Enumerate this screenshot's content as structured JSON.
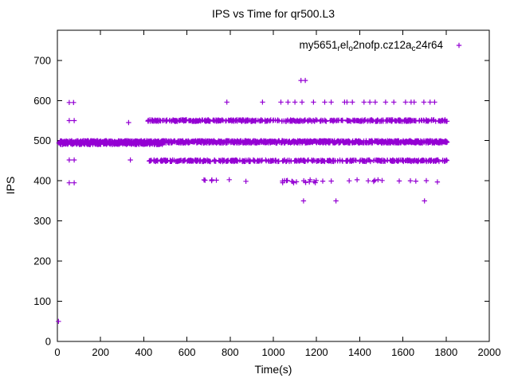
{
  "chart_data": {
    "type": "scatter",
    "title": "IPS vs Time for qr500.L3",
    "xlabel": "Time(s)",
    "ylabel": "IPS",
    "xlim": [
      0,
      2000
    ],
    "ylim": [
      0,
      775
    ],
    "xticks": [
      0,
      200,
      400,
      600,
      800,
      1000,
      1200,
      1400,
      1600,
      1800,
      2000
    ],
    "yticks": [
      0,
      100,
      200,
      300,
      400,
      500,
      600,
      700
    ],
    "grid": false,
    "legend_position": "top-right-inside",
    "marker": "plus",
    "series_color": "#9400d3",
    "axis_color": "#000000",
    "legend_label_plain": "my5651_rel_o2nofp.cz12a_c24r64",
    "legend_segments": [
      {
        "text": "my5651",
        "sub": false
      },
      {
        "text": "r",
        "sub": true
      },
      {
        "text": "el",
        "sub": false
      },
      {
        "text": "o",
        "sub": true
      },
      {
        "text": "2nofp.cz12a",
        "sub": false
      },
      {
        "text": "c",
        "sub": true
      },
      {
        "text": "24r64",
        "sub": false
      }
    ],
    "bands": [
      {
        "y": 497,
        "x0": 5,
        "x1": 1805,
        "n": 1200,
        "jitter": 3
      },
      {
        "y": 493,
        "x0": 5,
        "x1": 490,
        "n": 260,
        "jitter": 3
      },
      {
        "y": 550,
        "x0": 418,
        "x1": 1805,
        "n": 440,
        "jitter": 2
      },
      {
        "y": 450,
        "x0": 418,
        "x1": 1805,
        "n": 430,
        "jitter": 2
      },
      {
        "y": 400,
        "x0": 640,
        "x1": 1760,
        "n": 26,
        "jitter": 3
      },
      {
        "y": 398,
        "x0": 1040,
        "x1": 1200,
        "n": 12,
        "jitter": 3
      }
    ],
    "points": [
      [
        5,
        50
      ],
      [
        55,
        595
      ],
      [
        75,
        595
      ],
      [
        55,
        550
      ],
      [
        78,
        550
      ],
      [
        55,
        452
      ],
      [
        78,
        452
      ],
      [
        55,
        395
      ],
      [
        78,
        395
      ],
      [
        330,
        545
      ],
      [
        338,
        452
      ],
      [
        1128,
        650
      ],
      [
        1148,
        650
      ],
      [
        1140,
        350
      ],
      [
        1290,
        350
      ],
      [
        1700,
        350
      ],
      [
        785,
        596
      ],
      [
        950,
        596
      ],
      [
        1035,
        596
      ],
      [
        1068,
        596
      ],
      [
        1100,
        596
      ],
      [
        1133,
        596
      ],
      [
        1186,
        596
      ],
      [
        1238,
        596
      ],
      [
        1268,
        596
      ],
      [
        1330,
        596
      ],
      [
        1341,
        596
      ],
      [
        1366,
        596
      ],
      [
        1420,
        596
      ],
      [
        1447,
        596
      ],
      [
        1472,
        596
      ],
      [
        1520,
        596
      ],
      [
        1558,
        596
      ],
      [
        1612,
        596
      ],
      [
        1638,
        596
      ],
      [
        1652,
        596
      ],
      [
        1697,
        596
      ],
      [
        1726,
        596
      ],
      [
        1747,
        596
      ]
    ]
  }
}
